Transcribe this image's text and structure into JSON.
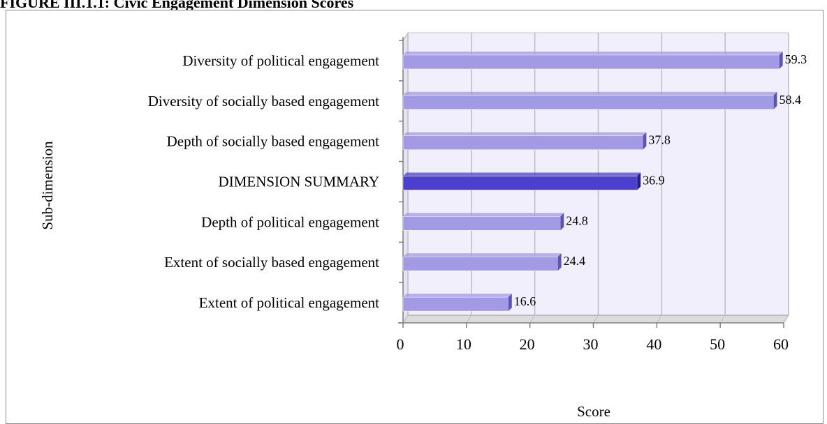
{
  "figure_title": "FIGURE III.1.1: Civic Engagement Dimension Scores",
  "chart_data": {
    "type": "bar",
    "orientation": "horizontal",
    "style": "3d",
    "title": "FIGURE III.1.1: Civic Engagement Dimension Scores",
    "xlabel": "Score",
    "ylabel": "Sub-dimension",
    "xlim": [
      0,
      60
    ],
    "xticks": [
      0,
      10,
      20,
      30,
      40,
      50,
      60
    ],
    "grid": true,
    "legend": "none",
    "categories": [
      "Diversity of political engagement",
      "Diversity of socially based engagement",
      "Depth of socially based engagement",
      "DIMENSION SUMMARY",
      "Depth of political engagement",
      "Extent of socially based engagement",
      "Extent of political engagement"
    ],
    "values": [
      59.3,
      58.4,
      37.8,
      36.9,
      24.8,
      24.4,
      16.6
    ],
    "highlight_category": "DIMENSION SUMMARY",
    "colors": {
      "bar": "#a39ae6",
      "bar_side": "#5b55b0",
      "highlight": "#4b3fd0",
      "highlight_side": "#241c8c",
      "plot_background": "#f1effb",
      "gridline": "#bdbdbd",
      "axis": "#7f7f7f"
    }
  }
}
